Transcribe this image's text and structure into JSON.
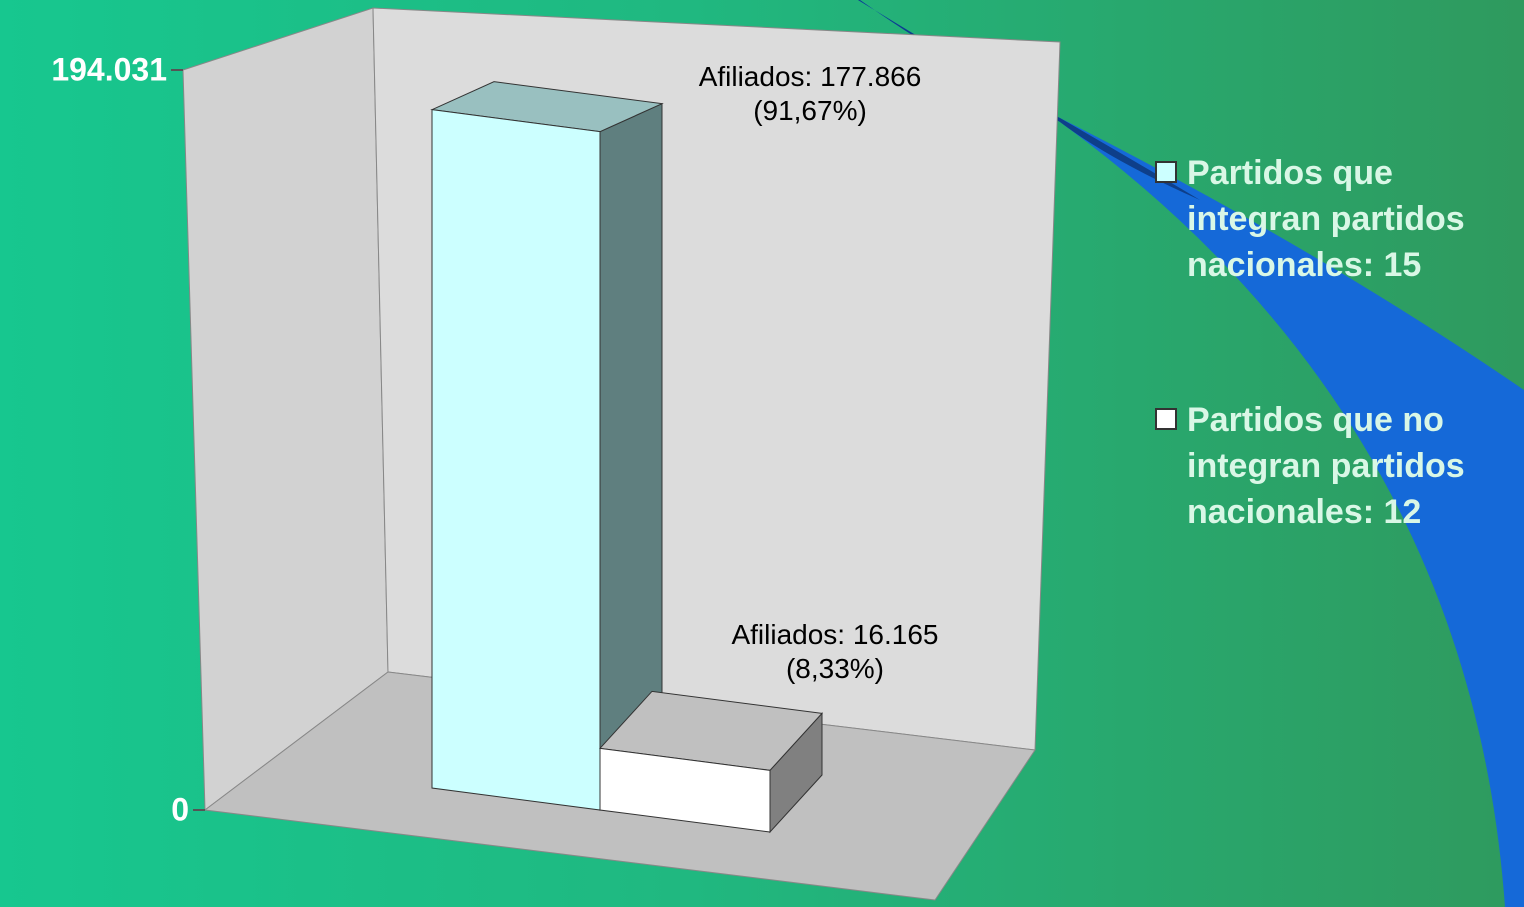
{
  "chart_data": {
    "type": "bar3d",
    "categories": [
      null
    ],
    "series": [
      {
        "name": "Partidos que integran partidos nacionales: 15",
        "color": "#ccffff",
        "values": [
          177866
        ],
        "value_labels": [
          "Afiliados: 177.866\n(91,67%)"
        ]
      },
      {
        "name": "Partidos que no integran partidos nacionales: 12",
        "color": "#ffffff",
        "values": [
          16165
        ],
        "value_labels": [
          "Afiliados: 16.165\n(8,33%)"
        ]
      }
    ],
    "ylim": [
      0,
      194031
    ],
    "yticks": [
      {
        "value": 194031,
        "label": "194.031"
      },
      0
    ],
    "legend": "right"
  }
}
